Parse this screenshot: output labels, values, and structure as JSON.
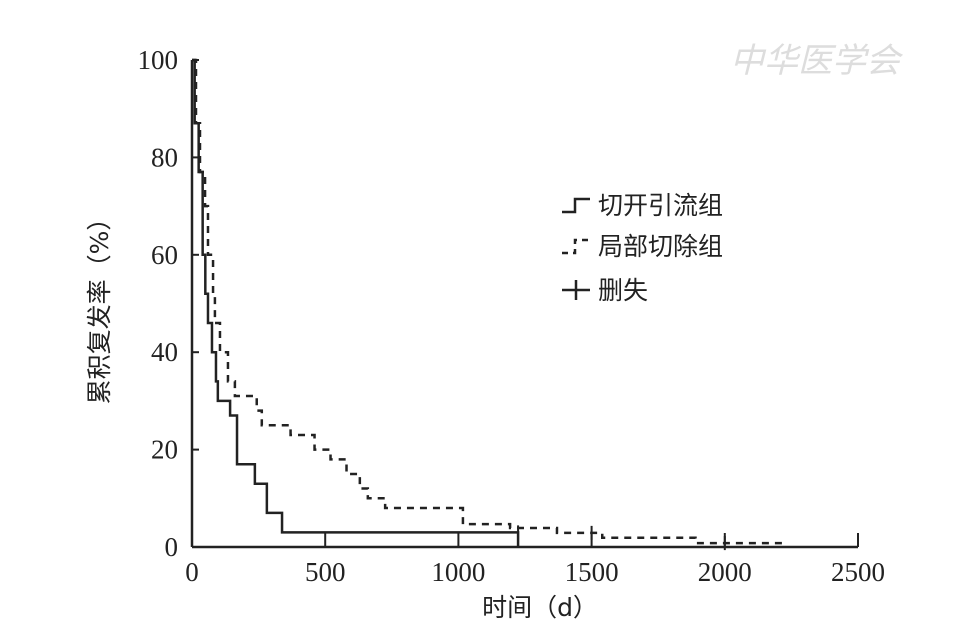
{
  "watermark": "中华医学会",
  "chart_data": {
    "type": "line",
    "step": true,
    "xlabel": "时间（d）",
    "ylabel": "累积复发率（%）",
    "xlim": [
      0,
      2500
    ],
    "ylim": [
      0,
      100
    ],
    "xticks": [
      0,
      500,
      1000,
      1500,
      2000,
      2500
    ],
    "yticks": [
      0,
      20,
      40,
      60,
      80,
      100
    ],
    "grid": false,
    "legend_position": "right-middle",
    "series": [
      {
        "name": "切开引流组",
        "style": "solid",
        "color": "#222222",
        "points": [
          [
            0,
            100
          ],
          [
            10,
            87
          ],
          [
            25,
            77
          ],
          [
            40,
            60
          ],
          [
            50,
            52
          ],
          [
            60,
            46
          ],
          [
            75,
            40
          ],
          [
            90,
            34
          ],
          [
            97,
            30
          ],
          [
            143,
            27
          ],
          [
            169,
            17
          ],
          [
            236,
            13
          ],
          [
            281,
            7
          ],
          [
            338,
            3
          ],
          [
            1224,
            0
          ]
        ]
      },
      {
        "name": "局部切除组",
        "style": "dashed",
        "color": "#222222",
        "points": [
          [
            0,
            100
          ],
          [
            15,
            87
          ],
          [
            30,
            77
          ],
          [
            49,
            70
          ],
          [
            60,
            60
          ],
          [
            79,
            52
          ],
          [
            86,
            46
          ],
          [
            105,
            40
          ],
          [
            135,
            34
          ],
          [
            161,
            31
          ],
          [
            243,
            28
          ],
          [
            262,
            25
          ],
          [
            370,
            23
          ],
          [
            460,
            20
          ],
          [
            520,
            18
          ],
          [
            580,
            15
          ],
          [
            630,
            12
          ],
          [
            660,
            10
          ],
          [
            725,
            8
          ],
          [
            1017,
            4.7
          ],
          [
            1194,
            3.9
          ],
          [
            1370,
            2.9
          ],
          [
            1540,
            1.9
          ],
          [
            1890,
            0.8
          ],
          [
            2234,
            0.8
          ]
        ]
      }
    ],
    "censor_label": "删失",
    "censored": [
      {
        "series": "切开引流组",
        "x": 1224
      },
      {
        "series": "局部切除组",
        "x": 1500
      },
      {
        "series": "局部切除组",
        "x": 2000
      }
    ]
  }
}
